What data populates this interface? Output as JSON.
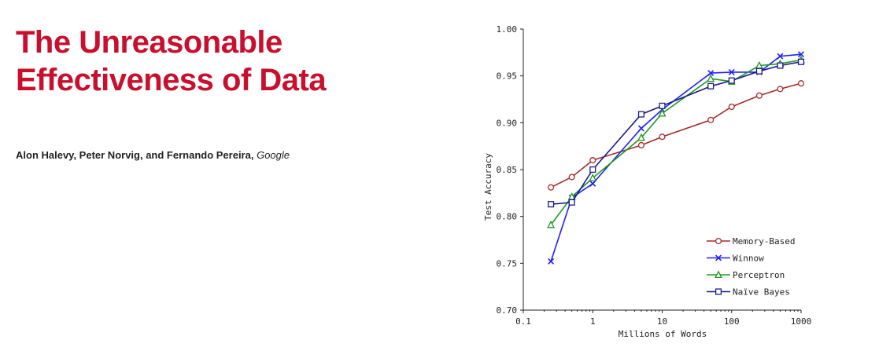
{
  "article": {
    "title_line1": "The Unreasonable",
    "title_line2": "Effectiveness of Data",
    "authors": "Alon Halevy, Peter Norvig, and Fernando Pereira,",
    "affiliation": "Google"
  },
  "colors": {
    "title": "#c8102e",
    "memory_based": "#a52a2a",
    "winnow": "#1f1fff",
    "perceptron": "#1e9a1e",
    "naive_bayes": "#1a1a8c"
  },
  "chart_data": {
    "type": "line",
    "title": "",
    "xlabel": "Millions of Words",
    "ylabel": "Test Accuracy",
    "xscale": "log",
    "xlim": [
      0.1,
      1000
    ],
    "ylim": [
      0.7,
      1.0
    ],
    "xticks": [
      "0.1",
      "1",
      "10",
      "100",
      "1000"
    ],
    "yticks": [
      "0.70",
      "0.75",
      "0.80",
      "0.85",
      "0.90",
      "0.95",
      "1.00"
    ],
    "grid": false,
    "legend_position": "bottom-right",
    "series": [
      {
        "name": "Memory-Based",
        "marker": "circle",
        "color": "#a52a2a",
        "x": [
          0.25,
          0.5,
          1,
          5,
          10,
          50,
          100,
          250,
          500,
          1000
        ],
        "y": [
          0.831,
          0.842,
          0.86,
          0.876,
          0.885,
          0.903,
          0.917,
          0.929,
          0.936,
          0.942
        ]
      },
      {
        "name": "Winnow",
        "marker": "x",
        "color": "#1f1fff",
        "x": [
          0.25,
          0.5,
          1,
          5,
          10,
          50,
          100,
          250,
          500,
          1000
        ],
        "y": [
          0.752,
          0.82,
          0.835,
          0.894,
          0.914,
          0.953,
          0.954,
          0.954,
          0.971,
          0.973
        ]
      },
      {
        "name": "Perceptron",
        "marker": "triangle",
        "color": "#1e9a1e",
        "x": [
          0.25,
          0.5,
          1,
          5,
          10,
          50,
          100,
          250,
          500,
          1000
        ],
        "y": [
          0.791,
          0.821,
          0.841,
          0.884,
          0.91,
          0.947,
          0.944,
          0.961,
          0.963,
          0.967
        ]
      },
      {
        "name": "Naïve Bayes",
        "marker": "square",
        "color": "#1a1a8c",
        "x": [
          0.25,
          0.5,
          1,
          5,
          10,
          50,
          100,
          250,
          500,
          1000
        ],
        "y": [
          0.813,
          0.815,
          0.85,
          0.909,
          0.918,
          0.939,
          0.945,
          0.955,
          0.961,
          0.965
        ]
      }
    ]
  }
}
